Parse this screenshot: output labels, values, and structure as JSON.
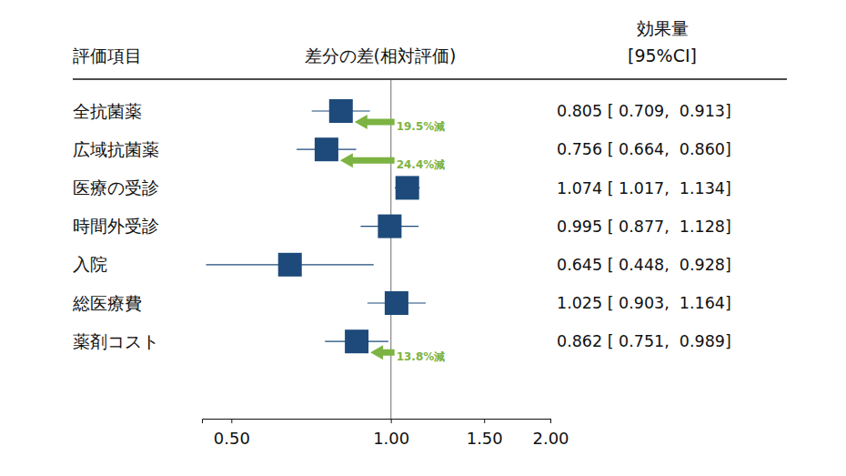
{
  "chart_data": {
    "type": "forest",
    "category_header": "評価項目",
    "plot_header": "差分の差(相対評価)",
    "label_header": "効果量",
    "label_subheader": "[95%CI]",
    "categories": [
      "全抗菌薬",
      "広域抗菌薬",
      "医療の受診",
      "時間外受診",
      "入院",
      "総医療費",
      "薬剤コスト"
    ],
    "values": [
      0.805,
      0.756,
      1.074,
      0.995,
      0.645,
      1.025,
      0.862
    ],
    "ci_lower": [
      0.709,
      0.664,
      1.017,
      0.877,
      0.448,
      0.903,
      0.751
    ],
    "ci_upper": [
      0.913,
      0.86,
      1.134,
      1.128,
      0.928,
      1.164,
      0.989
    ],
    "value_labels": [
      "0.805 [ 0.709,  0.913]",
      "0.756 [ 0.664,  0.860]",
      "1.074 [ 1.017,  1.134]",
      "0.995 [ 0.877,  1.128]",
      "0.645 [ 0.448,  0.928]",
      "1.025 [ 0.903,  1.164]",
      "0.862 [ 0.751,  0.989]"
    ],
    "annotations": [
      "19.5%減",
      "24.4%減",
      null,
      null,
      null,
      null,
      "13.8%減"
    ],
    "reference": 1,
    "log": "x",
    "color": "#1d4a7a",
    "xlim": [
      0.44,
      2.0
    ],
    "xticks": [
      {
        "value": 0.5,
        "label": "0.50"
      },
      {
        "value": 1.0,
        "label": "1.00"
      },
      {
        "value": 1.5,
        "label": "1.50"
      },
      {
        "value": 2.0,
        "label": "2.00"
      }
    ]
  }
}
